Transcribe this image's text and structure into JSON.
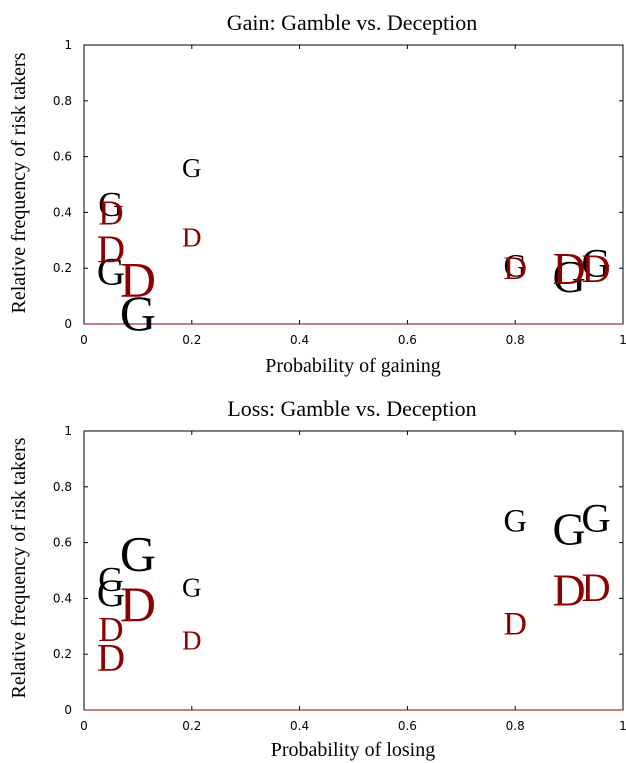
{
  "colors": {
    "gamble": "#000000",
    "deception": "#8b0000",
    "baseline": "#8b0000"
  },
  "chart_data": [
    {
      "type": "scatter",
      "title": "Gain: Gamble vs. Deception",
      "xlabel": "Probability of gaining",
      "ylabel": "Relative frequency of risk takers",
      "xlim": [
        0,
        1
      ],
      "ylim": [
        0,
        1
      ],
      "xticks": [
        "0",
        "0.2",
        "0.4",
        "0.6",
        "0.8",
        "1"
      ],
      "yticks": [
        "0",
        "0.2",
        "0.4",
        "0.6",
        "0.8",
        "1"
      ],
      "grid": false,
      "series": [
        {
          "marker": "G",
          "points": [
            {
              "x": 0.05,
              "y": 0.43,
              "weight": 1.3
            },
            {
              "x": 0.05,
              "y": 0.19,
              "weight": 1.45
            },
            {
              "x": 0.1,
              "y": 0.04,
              "weight": 1.85
            },
            {
              "x": 0.2,
              "y": 0.56,
              "weight": 1.0
            },
            {
              "x": 0.8,
              "y": 0.21,
              "weight": 1.2
            },
            {
              "x": 0.9,
              "y": 0.17,
              "weight": 1.7
            },
            {
              "x": 0.95,
              "y": 0.22,
              "weight": 1.5
            }
          ]
        },
        {
          "marker": "D",
          "points": [
            {
              "x": 0.05,
              "y": 0.4,
              "weight": 1.3
            },
            {
              "x": 0.05,
              "y": 0.27,
              "weight": 1.45
            },
            {
              "x": 0.1,
              "y": 0.16,
              "weight": 1.85
            },
            {
              "x": 0.2,
              "y": 0.31,
              "weight": 1.0
            },
            {
              "x": 0.8,
              "y": 0.2,
              "weight": 1.2
            },
            {
              "x": 0.9,
              "y": 0.2,
              "weight": 1.7
            },
            {
              "x": 0.95,
              "y": 0.2,
              "weight": 1.5
            }
          ]
        }
      ]
    },
    {
      "type": "scatter",
      "title": "Loss: Gamble vs. Deception",
      "xlabel": "Probability of losing",
      "ylabel": "Relative frequency of risk takers",
      "xlim": [
        0,
        1
      ],
      "ylim": [
        0,
        1
      ],
      "xticks": [
        "0",
        "0.2",
        "0.4",
        "0.6",
        "0.8",
        "1"
      ],
      "yticks": [
        "0",
        "0.2",
        "0.4",
        "0.6",
        "0.8",
        "1"
      ],
      "grid": false,
      "series": [
        {
          "marker": "G",
          "points": [
            {
              "x": 0.05,
              "y": 0.47,
              "weight": 1.3
            },
            {
              "x": 0.05,
              "y": 0.42,
              "weight": 1.45
            },
            {
              "x": 0.1,
              "y": 0.56,
              "weight": 1.85
            },
            {
              "x": 0.2,
              "y": 0.44,
              "weight": 1.0
            },
            {
              "x": 0.8,
              "y": 0.68,
              "weight": 1.2
            },
            {
              "x": 0.9,
              "y": 0.65,
              "weight": 1.7
            },
            {
              "x": 0.95,
              "y": 0.69,
              "weight": 1.5
            }
          ]
        },
        {
          "marker": "D",
          "points": [
            {
              "x": 0.05,
              "y": 0.29,
              "weight": 1.3
            },
            {
              "x": 0.05,
              "y": 0.19,
              "weight": 1.45
            },
            {
              "x": 0.1,
              "y": 0.38,
              "weight": 1.85
            },
            {
              "x": 0.2,
              "y": 0.25,
              "weight": 1.0
            },
            {
              "x": 0.8,
              "y": 0.31,
              "weight": 1.2
            },
            {
              "x": 0.9,
              "y": 0.43,
              "weight": 1.7
            },
            {
              "x": 0.95,
              "y": 0.44,
              "weight": 1.5
            }
          ]
        }
      ]
    }
  ]
}
